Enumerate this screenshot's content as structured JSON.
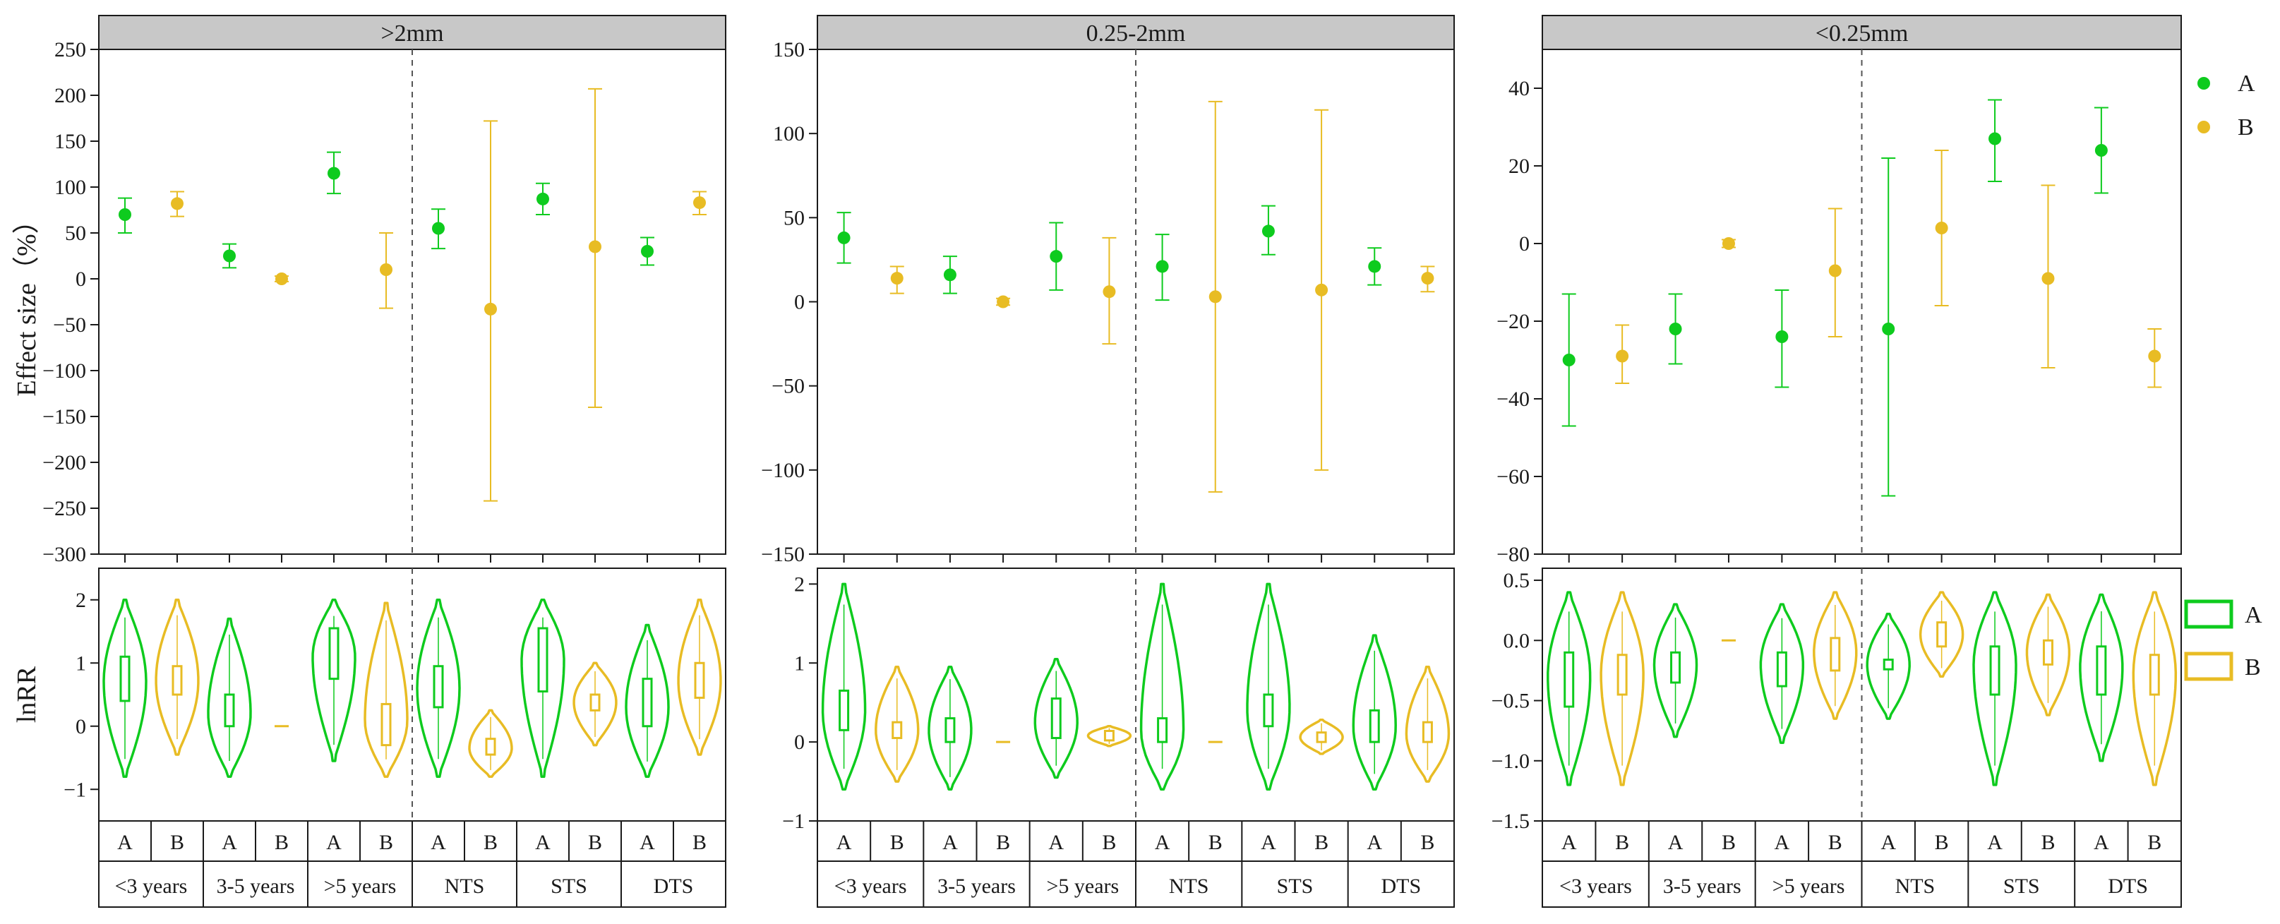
{
  "legend": {
    "series": [
      {
        "key": "A",
        "label": "A",
        "color": "#0ecb1e"
      },
      {
        "key": "B",
        "label": "B",
        "color": "#e8bc24"
      }
    ]
  },
  "groups": [
    "<3 years",
    "3-5 years",
    ">5 years",
    "NTS",
    "STS",
    "DTS"
  ],
  "treatments": [
    "A",
    "B"
  ],
  "violin_ylabel": "lnRR",
  "effect_ylabel": "Effect size（%）",
  "chart_data": [
    {
      "type": "scatter",
      "title": ">2mm",
      "ylabel": "Effect size（%）",
      "ylim": [
        -300,
        250
      ],
      "yticks": [
        250,
        200,
        150,
        100,
        50,
        0,
        -50,
        -100,
        -150,
        -200,
        -250,
        -300
      ],
      "categories": [
        "<3 years",
        "3-5 years",
        ">5 years",
        "NTS",
        "STS",
        "DTS"
      ],
      "series": [
        {
          "name": "A",
          "values": [
            70,
            25,
            115,
            55,
            87,
            30
          ],
          "lower": [
            50,
            12,
            93,
            33,
            70,
            15
          ],
          "upper": [
            88,
            38,
            138,
            76,
            104,
            45
          ]
        },
        {
          "name": "B",
          "values": [
            82,
            0,
            10,
            -33,
            35,
            83
          ],
          "lower": [
            68,
            -3,
            -32,
            -242,
            -140,
            70
          ],
          "upper": [
            95,
            3,
            50,
            172,
            207,
            95
          ]
        }
      ],
      "violin": {
        "ylim": [
          -1.5,
          2.5
        ],
        "yticks": [
          2,
          1,
          0,
          -1
        ],
        "series": [
          {
            "name": "A",
            "q1": [
              0.4,
              0.0,
              0.75,
              0.3,
              0.55,
              0.0
            ],
            "median": [
              0.7,
              0.2,
              1.1,
              0.6,
              1.05,
              0.3
            ],
            "q3": [
              1.1,
              0.5,
              1.55,
              0.95,
              1.55,
              0.75
            ],
            "min": [
              -0.8,
              -0.8,
              -0.55,
              -0.8,
              -0.8,
              -0.8
            ],
            "max": [
              2.0,
              1.7,
              2.0,
              2.0,
              2.0,
              1.6
            ]
          },
          {
            "name": "B",
            "q1": [
              0.5,
              -0.02,
              -0.3,
              -0.45,
              0.25,
              0.45
            ],
            "median": [
              0.72,
              0.0,
              0.1,
              -0.35,
              0.38,
              0.72
            ],
            "q3": [
              0.95,
              0.02,
              0.35,
              -0.2,
              0.5,
              1.0
            ],
            "min": [
              -0.45,
              -0.02,
              -0.8,
              -0.8,
              -0.3,
              -0.45
            ],
            "max": [
              2.0,
              0.02,
              1.95,
              0.25,
              1.0,
              2.0
            ]
          }
        ]
      }
    },
    {
      "type": "scatter",
      "title": "0.25-2mm",
      "ylabel": "",
      "ylim": [
        -150,
        150
      ],
      "yticks": [
        150,
        100,
        50,
        0,
        -50,
        -100,
        -150
      ],
      "categories": [
        "<3 years",
        "3-5 years",
        ">5 years",
        "NTS",
        "STS",
        "DTS"
      ],
      "series": [
        {
          "name": "A",
          "values": [
            38,
            16,
            27,
            21,
            42,
            21
          ],
          "lower": [
            23,
            5,
            7,
            1,
            28,
            10
          ],
          "upper": [
            53,
            27,
            47,
            40,
            57,
            32
          ]
        },
        {
          "name": "B",
          "values": [
            14,
            0,
            6,
            3,
            7,
            14
          ],
          "lower": [
            5,
            -2,
            -25,
            -113,
            -100,
            6
          ],
          "upper": [
            21,
            2,
            38,
            119,
            114,
            21
          ]
        }
      ],
      "violin": {
        "ylim": [
          -1.0,
          2.2
        ],
        "yticks": [
          2,
          1,
          0,
          -1
        ],
        "series": [
          {
            "name": "A",
            "q1": [
              0.15,
              0.0,
              0.05,
              0.0,
              0.2,
              0.0
            ],
            "median": [
              0.4,
              0.15,
              0.25,
              0.15,
              0.42,
              0.2
            ],
            "q3": [
              0.65,
              0.3,
              0.55,
              0.3,
              0.6,
              0.4
            ],
            "min": [
              -0.6,
              -0.6,
              -0.45,
              -0.6,
              -0.6,
              -0.6
            ],
            "max": [
              2.0,
              0.95,
              1.05,
              2.0,
              2.0,
              1.35
            ]
          },
          {
            "name": "B",
            "q1": [
              0.05,
              -0.01,
              0.02,
              -0.01,
              0.0,
              0.0
            ],
            "median": [
              0.15,
              0.0,
              0.08,
              0.0,
              0.06,
              0.1
            ],
            "q3": [
              0.25,
              0.01,
              0.14,
              0.01,
              0.12,
              0.25
            ],
            "min": [
              -0.5,
              -0.01,
              -0.05,
              -0.01,
              -0.15,
              -0.5
            ],
            "max": [
              0.95,
              0.01,
              0.2,
              0.01,
              0.28,
              0.95
            ]
          }
        ]
      }
    },
    {
      "type": "scatter",
      "title": "<0.25mm",
      "ylabel": "",
      "ylim": [
        -80,
        50
      ],
      "yticks": [
        40,
        20,
        0,
        -20,
        -40,
        -60,
        -80
      ],
      "categories": [
        "<3 years",
        "3-5 years",
        ">5 years",
        "NTS",
        "STS",
        "DTS"
      ],
      "series": [
        {
          "name": "A",
          "values": [
            -30,
            -22,
            -24,
            -22,
            27,
            24
          ],
          "lower": [
            -47,
            -31,
            -37,
            -65,
            16,
            13
          ],
          "upper": [
            -13,
            -13,
            -12,
            22,
            37,
            35
          ]
        },
        {
          "name": "B",
          "values": [
            -29,
            0,
            -7,
            4,
            -9,
            -29
          ],
          "lower": [
            -36,
            -1,
            -24,
            -16,
            -32,
            -37
          ],
          "upper": [
            -21,
            1,
            9,
            24,
            15,
            -22
          ]
        }
      ],
      "violin": {
        "ylim": [
          -1.5,
          0.6
        ],
        "yticks": [
          0.5,
          0.0,
          -0.5,
          -1.0,
          -1.5
        ],
        "series": [
          {
            "name": "A",
            "q1": [
              -0.55,
              -0.35,
              -0.38,
              -0.24,
              -0.45,
              -0.45
            ],
            "median": [
              -0.3,
              -0.2,
              -0.2,
              -0.2,
              -0.2,
              -0.22
            ],
            "q3": [
              -0.1,
              -0.1,
              -0.1,
              -0.16,
              -0.05,
              -0.05
            ],
            "min": [
              -1.2,
              -0.8,
              -0.85,
              -0.65,
              -1.2,
              -1.0
            ],
            "max": [
              0.4,
              0.3,
              0.3,
              0.22,
              0.4,
              0.38
            ]
          },
          {
            "name": "B",
            "q1": [
              -0.45,
              -0.01,
              -0.25,
              -0.05,
              -0.2,
              -0.45
            ],
            "median": [
              -0.28,
              0.0,
              -0.1,
              0.05,
              -0.1,
              -0.28
            ],
            "q3": [
              -0.12,
              0.01,
              0.02,
              0.15,
              0.0,
              -0.12
            ],
            "min": [
              -1.2,
              -0.01,
              -0.65,
              -0.3,
              -0.62,
              -1.2
            ],
            "max": [
              0.4,
              0.01,
              0.4,
              0.4,
              0.38,
              0.4
            ]
          }
        ]
      }
    }
  ]
}
